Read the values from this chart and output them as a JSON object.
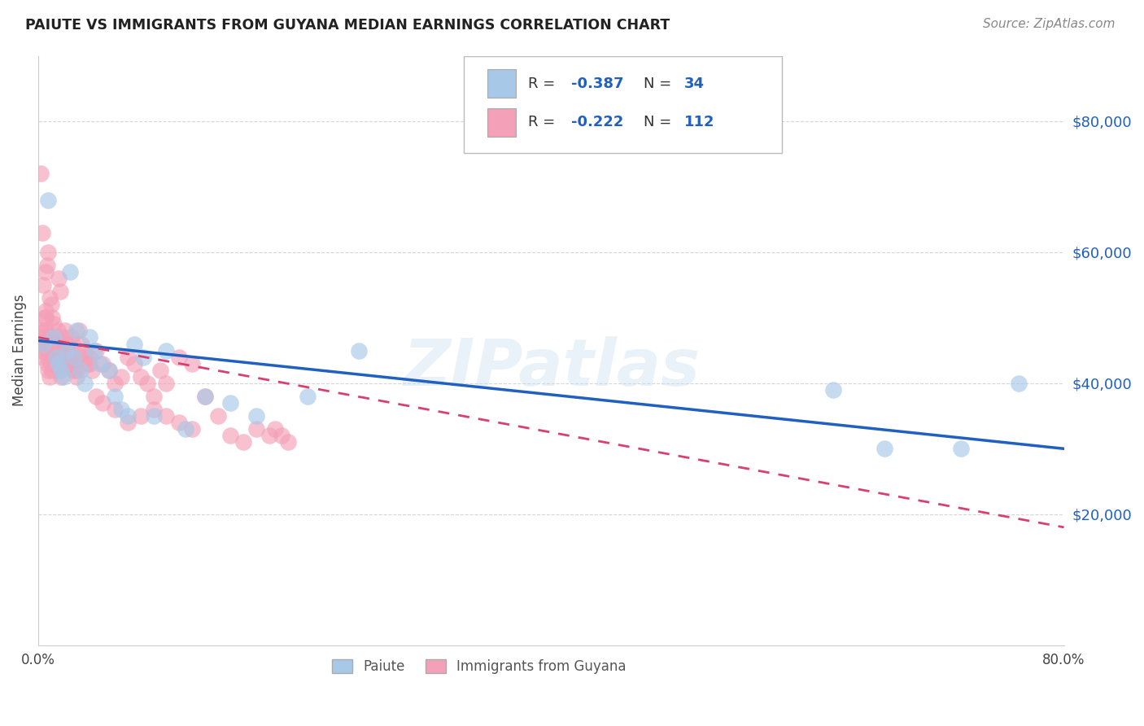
{
  "title": "PAIUTE VS IMMIGRANTS FROM GUYANA MEDIAN EARNINGS CORRELATION CHART",
  "source": "Source: ZipAtlas.com",
  "ylabel": "Median Earnings",
  "watermark": "ZIPatlas",
  "legend_label1": "Paiute",
  "legend_label2": "Immigrants from Guyana",
  "paiute_color": "#a8c8e8",
  "guyana_color": "#f4a0b8",
  "paiute_line_color": "#2060c0",
  "guyana_line_color": "#d84070",
  "title_color": "#222222",
  "source_color": "#888888",
  "value_color": "#2060c0",
  "ytick_values": [
    20000,
    40000,
    60000,
    80000
  ],
  "ylim": [
    0,
    90000
  ],
  "xlim_min": 0.0,
  "xlim_max": 0.8,
  "paiute_x": [
    0.004,
    0.008,
    0.012,
    0.014,
    0.016,
    0.018,
    0.02,
    0.022,
    0.025,
    0.028,
    0.03,
    0.033,
    0.036,
    0.04,
    0.044,
    0.048,
    0.055,
    0.06,
    0.065,
    0.07,
    0.075,
    0.082,
    0.09,
    0.1,
    0.115,
    0.13,
    0.15,
    0.17,
    0.21,
    0.25,
    0.62,
    0.66,
    0.72,
    0.765
  ],
  "paiute_y": [
    46000,
    68000,
    47000,
    44000,
    43000,
    42000,
    41000,
    45000,
    57000,
    44000,
    48000,
    42000,
    40000,
    47000,
    45000,
    43000,
    42000,
    38000,
    36000,
    35000,
    46000,
    44000,
    35000,
    45000,
    33000,
    38000,
    37000,
    35000,
    38000,
    45000,
    39000,
    30000,
    30000,
    40000
  ],
  "guyana_x": [
    0.002,
    0.003,
    0.004,
    0.005,
    0.006,
    0.007,
    0.008,
    0.009,
    0.01,
    0.011,
    0.012,
    0.013,
    0.014,
    0.015,
    0.016,
    0.017,
    0.018,
    0.019,
    0.02,
    0.021,
    0.022,
    0.023,
    0.024,
    0.025,
    0.026,
    0.027,
    0.028,
    0.029,
    0.03,
    0.032,
    0.034,
    0.036,
    0.038,
    0.04,
    0.042,
    0.045,
    0.05,
    0.055,
    0.06,
    0.065,
    0.07,
    0.075,
    0.08,
    0.085,
    0.09,
    0.095,
    0.1,
    0.11,
    0.12,
    0.13,
    0.003,
    0.004,
    0.005,
    0.006,
    0.007,
    0.008,
    0.009,
    0.01,
    0.011,
    0.012,
    0.013,
    0.014,
    0.015,
    0.016,
    0.017,
    0.018,
    0.02,
    0.022,
    0.024,
    0.026,
    0.028,
    0.03,
    0.035,
    0.04,
    0.045,
    0.05,
    0.06,
    0.07,
    0.08,
    0.09,
    0.1,
    0.11,
    0.12,
    0.14,
    0.15,
    0.16,
    0.17,
    0.18,
    0.185,
    0.19,
    0.195,
    0.002,
    0.003,
    0.004,
    0.005,
    0.006,
    0.006,
    0.007,
    0.007,
    0.008,
    0.008,
    0.009,
    0.009,
    0.01,
    0.01,
    0.011,
    0.011,
    0.012,
    0.012,
    0.013,
    0.013,
    0.014
  ],
  "guyana_y": [
    72000,
    63000,
    55000,
    50000,
    57000,
    58000,
    60000,
    53000,
    52000,
    50000,
    49000,
    46000,
    47000,
    48000,
    56000,
    54000,
    45000,
    44000,
    47000,
    48000,
    46000,
    45000,
    44000,
    43000,
    47000,
    46000,
    44000,
    43000,
    42000,
    48000,
    46000,
    45000,
    43000,
    44000,
    42000,
    45000,
    43000,
    42000,
    40000,
    41000,
    44000,
    43000,
    41000,
    40000,
    38000,
    42000,
    40000,
    44000,
    43000,
    38000,
    45000,
    44000,
    46000,
    48000,
    43000,
    42000,
    41000,
    43000,
    42000,
    44000,
    46000,
    43000,
    45000,
    44000,
    42000,
    41000,
    43000,
    46000,
    44000,
    43000,
    42000,
    41000,
    44000,
    43000,
    38000,
    37000,
    36000,
    34000,
    35000,
    36000,
    35000,
    34000,
    33000,
    35000,
    32000,
    31000,
    33000,
    32000,
    33000,
    32000,
    31000,
    48000,
    46000,
    47000,
    48000,
    50000,
    51000,
    46000,
    47000,
    45000,
    44000,
    46000,
    47000,
    45000,
    44000,
    46000,
    45000,
    44000,
    43000,
    46000,
    45000,
    44000
  ]
}
